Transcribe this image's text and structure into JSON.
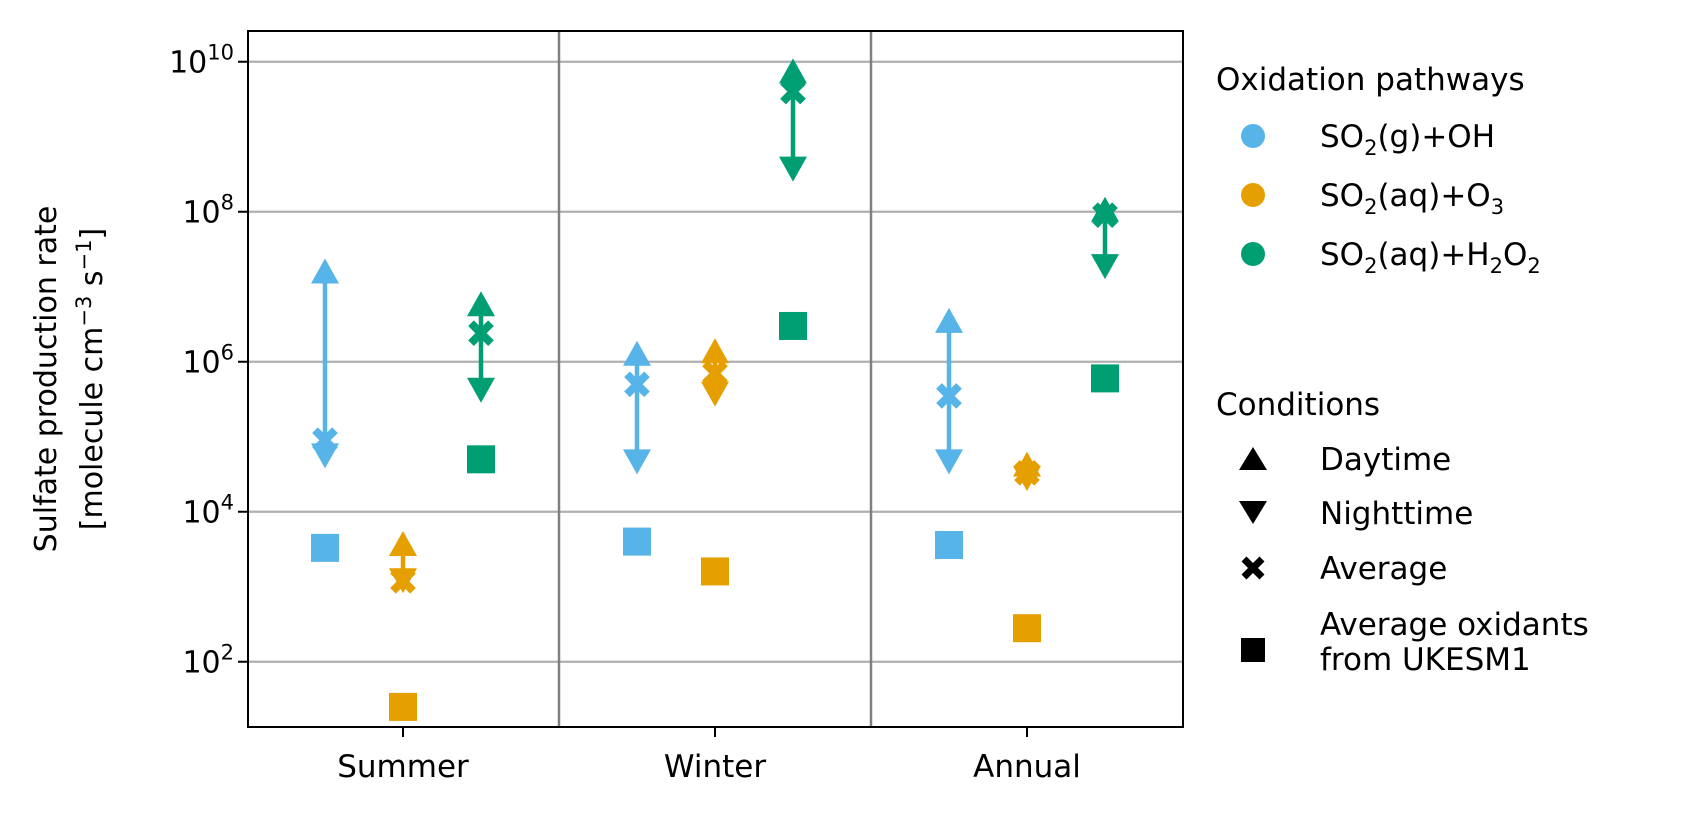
{
  "chart_data": {
    "type": "scatter",
    "y_scale": "log",
    "ylim": [
      10,
      10000000000
    ],
    "yticks": [
      {
        "value": 100,
        "base": "10",
        "exp": "2"
      },
      {
        "value": 10000,
        "base": "10",
        "exp": "4"
      },
      {
        "value": 1000000,
        "base": "10",
        "exp": "6"
      },
      {
        "value": 100000000,
        "base": "10",
        "exp": "8"
      },
      {
        "value": 10000000000,
        "base": "10",
        "exp": "10"
      }
    ],
    "ylabel_line1": "Sulfate production rate",
    "ylabel_line2": {
      "open": "[molecule cm",
      "exp1": "−3",
      "mid": " s",
      "exp2": "−1",
      "close": "]"
    },
    "grid": "horizontal",
    "categories": [
      "Summer",
      "Winter",
      "Annual"
    ],
    "pathway_colors": {
      "oh": "#56b4e9",
      "o3": "#e69f00",
      "h2o2": "#009e73"
    },
    "series": [
      {
        "pathway": "oh",
        "values": [
          {
            "category": "Summer",
            "day": 15000000,
            "night": 60000,
            "avg": 90000,
            "ukesm": 3300
          },
          {
            "category": "Winter",
            "day": 1200000,
            "night": 50000,
            "avg": 500000,
            "ukesm": 4000
          },
          {
            "category": "Annual",
            "day": 3300000,
            "night": 50000,
            "avg": 350000,
            "ukesm": 3600
          }
        ]
      },
      {
        "pathway": "o3",
        "values": [
          {
            "category": "Summer",
            "day": 3500,
            "night": 1300,
            "avg": 1200,
            "ukesm": 25
          },
          {
            "category": "Winter",
            "day": 1300000,
            "night": 400000,
            "avg": 700000,
            "ukesm": 1600
          },
          {
            "category": "Annual",
            "day": 40000,
            "night": 30000,
            "avg": 33000,
            "ukesm": 280
          }
        ]
      },
      {
        "pathway": "h2o2",
        "values": [
          {
            "category": "Summer",
            "day": 5500000,
            "night": 450000,
            "avg": 2400000,
            "ukesm": 50000
          },
          {
            "category": "Winter",
            "day": 7000000000,
            "night": 400000000,
            "avg": 4000000000,
            "ukesm": 3000000
          },
          {
            "category": "Annual",
            "day": 100000000,
            "night": 20000000,
            "avg": 90000000,
            "ukesm": 600000
          }
        ]
      }
    ],
    "legend": {
      "placement": "right",
      "pathways_title": "Oxidation pathways",
      "pathways": [
        {
          "key": "oh",
          "pre": "SO",
          "sub1": "2",
          "mid": "(g)+OH",
          "sub2": "",
          "post": ""
        },
        {
          "key": "o3",
          "pre": "SO",
          "sub1": "2",
          "mid": "(aq)+O",
          "sub2": "3",
          "post": ""
        },
        {
          "key": "h2o2",
          "pre": "SO",
          "sub1": "2",
          "mid": "(aq)+H",
          "sub2": "2",
          "post": "O",
          "sub3": "2"
        }
      ],
      "conditions_title": "Conditions",
      "conditions": [
        {
          "marker": "triangle-up",
          "label": "Daytime"
        },
        {
          "marker": "triangle-down",
          "label": "Nighttime"
        },
        {
          "marker": "x",
          "label": "Average"
        },
        {
          "marker": "square",
          "label": "Average oxidants",
          "label2": "from UKESM1"
        }
      ]
    }
  }
}
